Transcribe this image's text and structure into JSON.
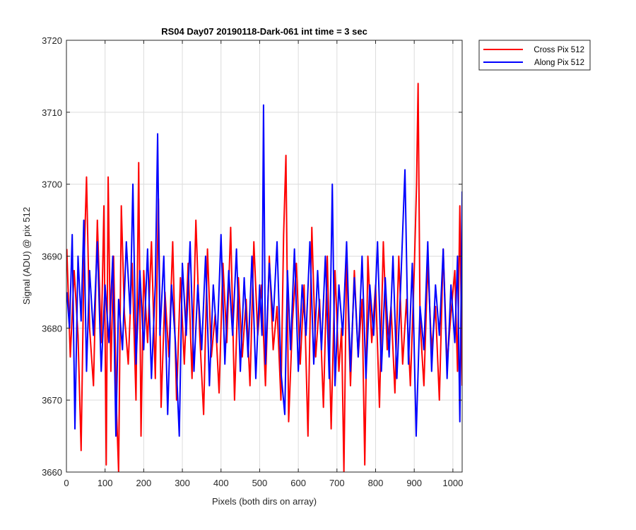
{
  "chart_data": {
    "type": "line",
    "title": "RS04 Day07 20190118-Dark-061 int time = 3 sec",
    "xlabel": "Pixels (both dirs on array)",
    "ylabel": "Signal (ADU) @ pix 512",
    "xlim": [
      0,
      1024
    ],
    "ylim": [
      3660,
      3720
    ],
    "xticks": [
      0,
      100,
      200,
      300,
      400,
      500,
      600,
      700,
      800,
      900,
      1000
    ],
    "yticks": [
      3660,
      3670,
      3680,
      3690,
      3700,
      3710,
      3720
    ],
    "grid": true,
    "legend_location": "outside top-right",
    "series_note": "Each series has 1024 samples (x = 1..1024); values below are a downsampled reading of the noise trace plus notable extremes.",
    "series": [
      {
        "name": "Cross Pix 512",
        "color": "#ff0000",
        "points": [
          [
            1,
            3691
          ],
          [
            10,
            3676
          ],
          [
            20,
            3688
          ],
          [
            30,
            3679
          ],
          [
            38,
            3663
          ],
          [
            45,
            3688
          ],
          [
            52,
            3701
          ],
          [
            60,
            3680
          ],
          [
            70,
            3672
          ],
          [
            80,
            3695
          ],
          [
            90,
            3678
          ],
          [
            97,
            3697
          ],
          [
            103,
            3661
          ],
          [
            108,
            3701
          ],
          [
            115,
            3674
          ],
          [
            122,
            3690
          ],
          [
            130,
            3668
          ],
          [
            135,
            3660
          ],
          [
            142,
            3697
          ],
          [
            150,
            3682
          ],
          [
            160,
            3675
          ],
          [
            170,
            3689
          ],
          [
            180,
            3670
          ],
          [
            187,
            3703
          ],
          [
            193,
            3665
          ],
          [
            200,
            3688
          ],
          [
            210,
            3678
          ],
          [
            220,
            3692
          ],
          [
            230,
            3673
          ],
          [
            238,
            3698
          ],
          [
            245,
            3669
          ],
          [
            255,
            3685
          ],
          [
            265,
            3676
          ],
          [
            275,
            3692
          ],
          [
            285,
            3670
          ],
          [
            295,
            3687
          ],
          [
            305,
            3675
          ],
          [
            315,
            3689
          ],
          [
            325,
            3673
          ],
          [
            335,
            3695
          ],
          [
            345,
            3679
          ],
          [
            355,
            3668
          ],
          [
            365,
            3691
          ],
          [
            375,
            3676
          ],
          [
            385,
            3682
          ],
          [
            395,
            3671
          ],
          [
            405,
            3689
          ],
          [
            415,
            3678
          ],
          [
            425,
            3694
          ],
          [
            435,
            3670
          ],
          [
            445,
            3687
          ],
          [
            455,
            3676
          ],
          [
            465,
            3684
          ],
          [
            475,
            3672
          ],
          [
            485,
            3692
          ],
          [
            495,
            3679
          ],
          [
            505,
            3686
          ],
          [
            515,
            3672
          ],
          [
            525,
            3690
          ],
          [
            535,
            3677
          ],
          [
            545,
            3683
          ],
          [
            555,
            3670
          ],
          [
            562,
            3693
          ],
          [
            568,
            3704
          ],
          [
            575,
            3667
          ],
          [
            585,
            3681
          ],
          [
            595,
            3689
          ],
          [
            605,
            3675
          ],
          [
            615,
            3686
          ],
          [
            625,
            3665
          ],
          [
            635,
            3694
          ],
          [
            645,
            3676
          ],
          [
            655,
            3684
          ],
          [
            665,
            3669
          ],
          [
            675,
            3690
          ],
          [
            685,
            3666
          ],
          [
            695,
            3688
          ],
          [
            705,
            3674
          ],
          [
            712,
            3680
          ],
          [
            718,
            3660
          ],
          [
            725,
            3690
          ],
          [
            735,
            3672
          ],
          [
            745,
            3688
          ],
          [
            755,
            3676
          ],
          [
            765,
            3684
          ],
          [
            772,
            3661
          ],
          [
            780,
            3690
          ],
          [
            790,
            3678
          ],
          [
            800,
            3686
          ],
          [
            810,
            3669
          ],
          [
            820,
            3692
          ],
          [
            830,
            3677
          ],
          [
            840,
            3683
          ],
          [
            850,
            3671
          ],
          [
            860,
            3690
          ],
          [
            870,
            3675
          ],
          [
            880,
            3684
          ],
          [
            890,
            3672
          ],
          [
            900,
            3688
          ],
          [
            906,
            3700
          ],
          [
            910,
            3714
          ],
          [
            915,
            3681
          ],
          [
            925,
            3672
          ],
          [
            935,
            3689
          ],
          [
            945,
            3677
          ],
          [
            955,
            3683
          ],
          [
            965,
            3670
          ],
          [
            975,
            3691
          ],
          [
            985,
            3675
          ],
          [
            995,
            3682
          ],
          [
            1005,
            3688
          ],
          [
            1012,
            3674
          ],
          [
            1018,
            3697
          ],
          [
            1024,
            3672
          ]
        ]
      },
      {
        "name": "Along Pix 512",
        "color": "#0000ff",
        "points": [
          [
            1,
            3685
          ],
          [
            8,
            3680
          ],
          [
            15,
            3693
          ],
          [
            22,
            3666
          ],
          [
            30,
            3690
          ],
          [
            38,
            3681
          ],
          [
            45,
            3695
          ],
          [
            52,
            3674
          ],
          [
            60,
            3688
          ],
          [
            70,
            3679
          ],
          [
            80,
            3692
          ],
          [
            90,
            3674
          ],
          [
            100,
            3686
          ],
          [
            110,
            3678
          ],
          [
            120,
            3690
          ],
          [
            128,
            3665
          ],
          [
            135,
            3684
          ],
          [
            145,
            3677
          ],
          [
            155,
            3692
          ],
          [
            165,
            3682
          ],
          [
            172,
            3700
          ],
          [
            180,
            3675
          ],
          [
            190,
            3688
          ],
          [
            200,
            3677
          ],
          [
            210,
            3691
          ],
          [
            220,
            3673
          ],
          [
            230,
            3686
          ],
          [
            236,
            3707
          ],
          [
            242,
            3679
          ],
          [
            252,
            3690
          ],
          [
            262,
            3668
          ],
          [
            272,
            3686
          ],
          [
            282,
            3678
          ],
          [
            292,
            3665
          ],
          [
            300,
            3689
          ],
          [
            310,
            3679
          ],
          [
            320,
            3692
          ],
          [
            330,
            3674
          ],
          [
            340,
            3686
          ],
          [
            350,
            3677
          ],
          [
            360,
            3690
          ],
          [
            370,
            3672
          ],
          [
            380,
            3686
          ],
          [
            390,
            3678
          ],
          [
            400,
            3693
          ],
          [
            410,
            3675
          ],
          [
            420,
            3688
          ],
          [
            430,
            3679
          ],
          [
            440,
            3691
          ],
          [
            450,
            3674
          ],
          [
            460,
            3687
          ],
          [
            470,
            3676
          ],
          [
            480,
            3690
          ],
          [
            490,
            3673
          ],
          [
            500,
            3686
          ],
          [
            506,
            3679
          ],
          [
            510,
            3711
          ],
          [
            515,
            3675
          ],
          [
            525,
            3689
          ],
          [
            535,
            3681
          ],
          [
            545,
            3692
          ],
          [
            555,
            3674
          ],
          [
            565,
            3668
          ],
          [
            572,
            3688
          ],
          [
            580,
            3677
          ],
          [
            590,
            3691
          ],
          [
            600,
            3674
          ],
          [
            610,
            3686
          ],
          [
            620,
            3679
          ],
          [
            630,
            3692
          ],
          [
            640,
            3675
          ],
          [
            650,
            3688
          ],
          [
            660,
            3677
          ],
          [
            670,
            3690
          ],
          [
            680,
            3673
          ],
          [
            688,
            3700
          ],
          [
            695,
            3672
          ],
          [
            705,
            3686
          ],
          [
            715,
            3679
          ],
          [
            725,
            3692
          ],
          [
            735,
            3674
          ],
          [
            745,
            3687
          ],
          [
            755,
            3676
          ],
          [
            765,
            3690
          ],
          [
            775,
            3673
          ],
          [
            785,
            3686
          ],
          [
            795,
            3679
          ],
          [
            805,
            3692
          ],
          [
            815,
            3674
          ],
          [
            825,
            3687
          ],
          [
            835,
            3676
          ],
          [
            845,
            3690
          ],
          [
            855,
            3673
          ],
          [
            865,
            3686
          ],
          [
            876,
            3702
          ],
          [
            885,
            3675
          ],
          [
            895,
            3689
          ],
          [
            905,
            3665
          ],
          [
            915,
            3683
          ],
          [
            925,
            3677
          ],
          [
            935,
            3692
          ],
          [
            945,
            3674
          ],
          [
            955,
            3686
          ],
          [
            965,
            3679
          ],
          [
            975,
            3691
          ],
          [
            985,
            3673
          ],
          [
            995,
            3686
          ],
          [
            1005,
            3678
          ],
          [
            1012,
            3690
          ],
          [
            1018,
            3667
          ],
          [
            1024,
            3699
          ]
        ]
      }
    ]
  }
}
